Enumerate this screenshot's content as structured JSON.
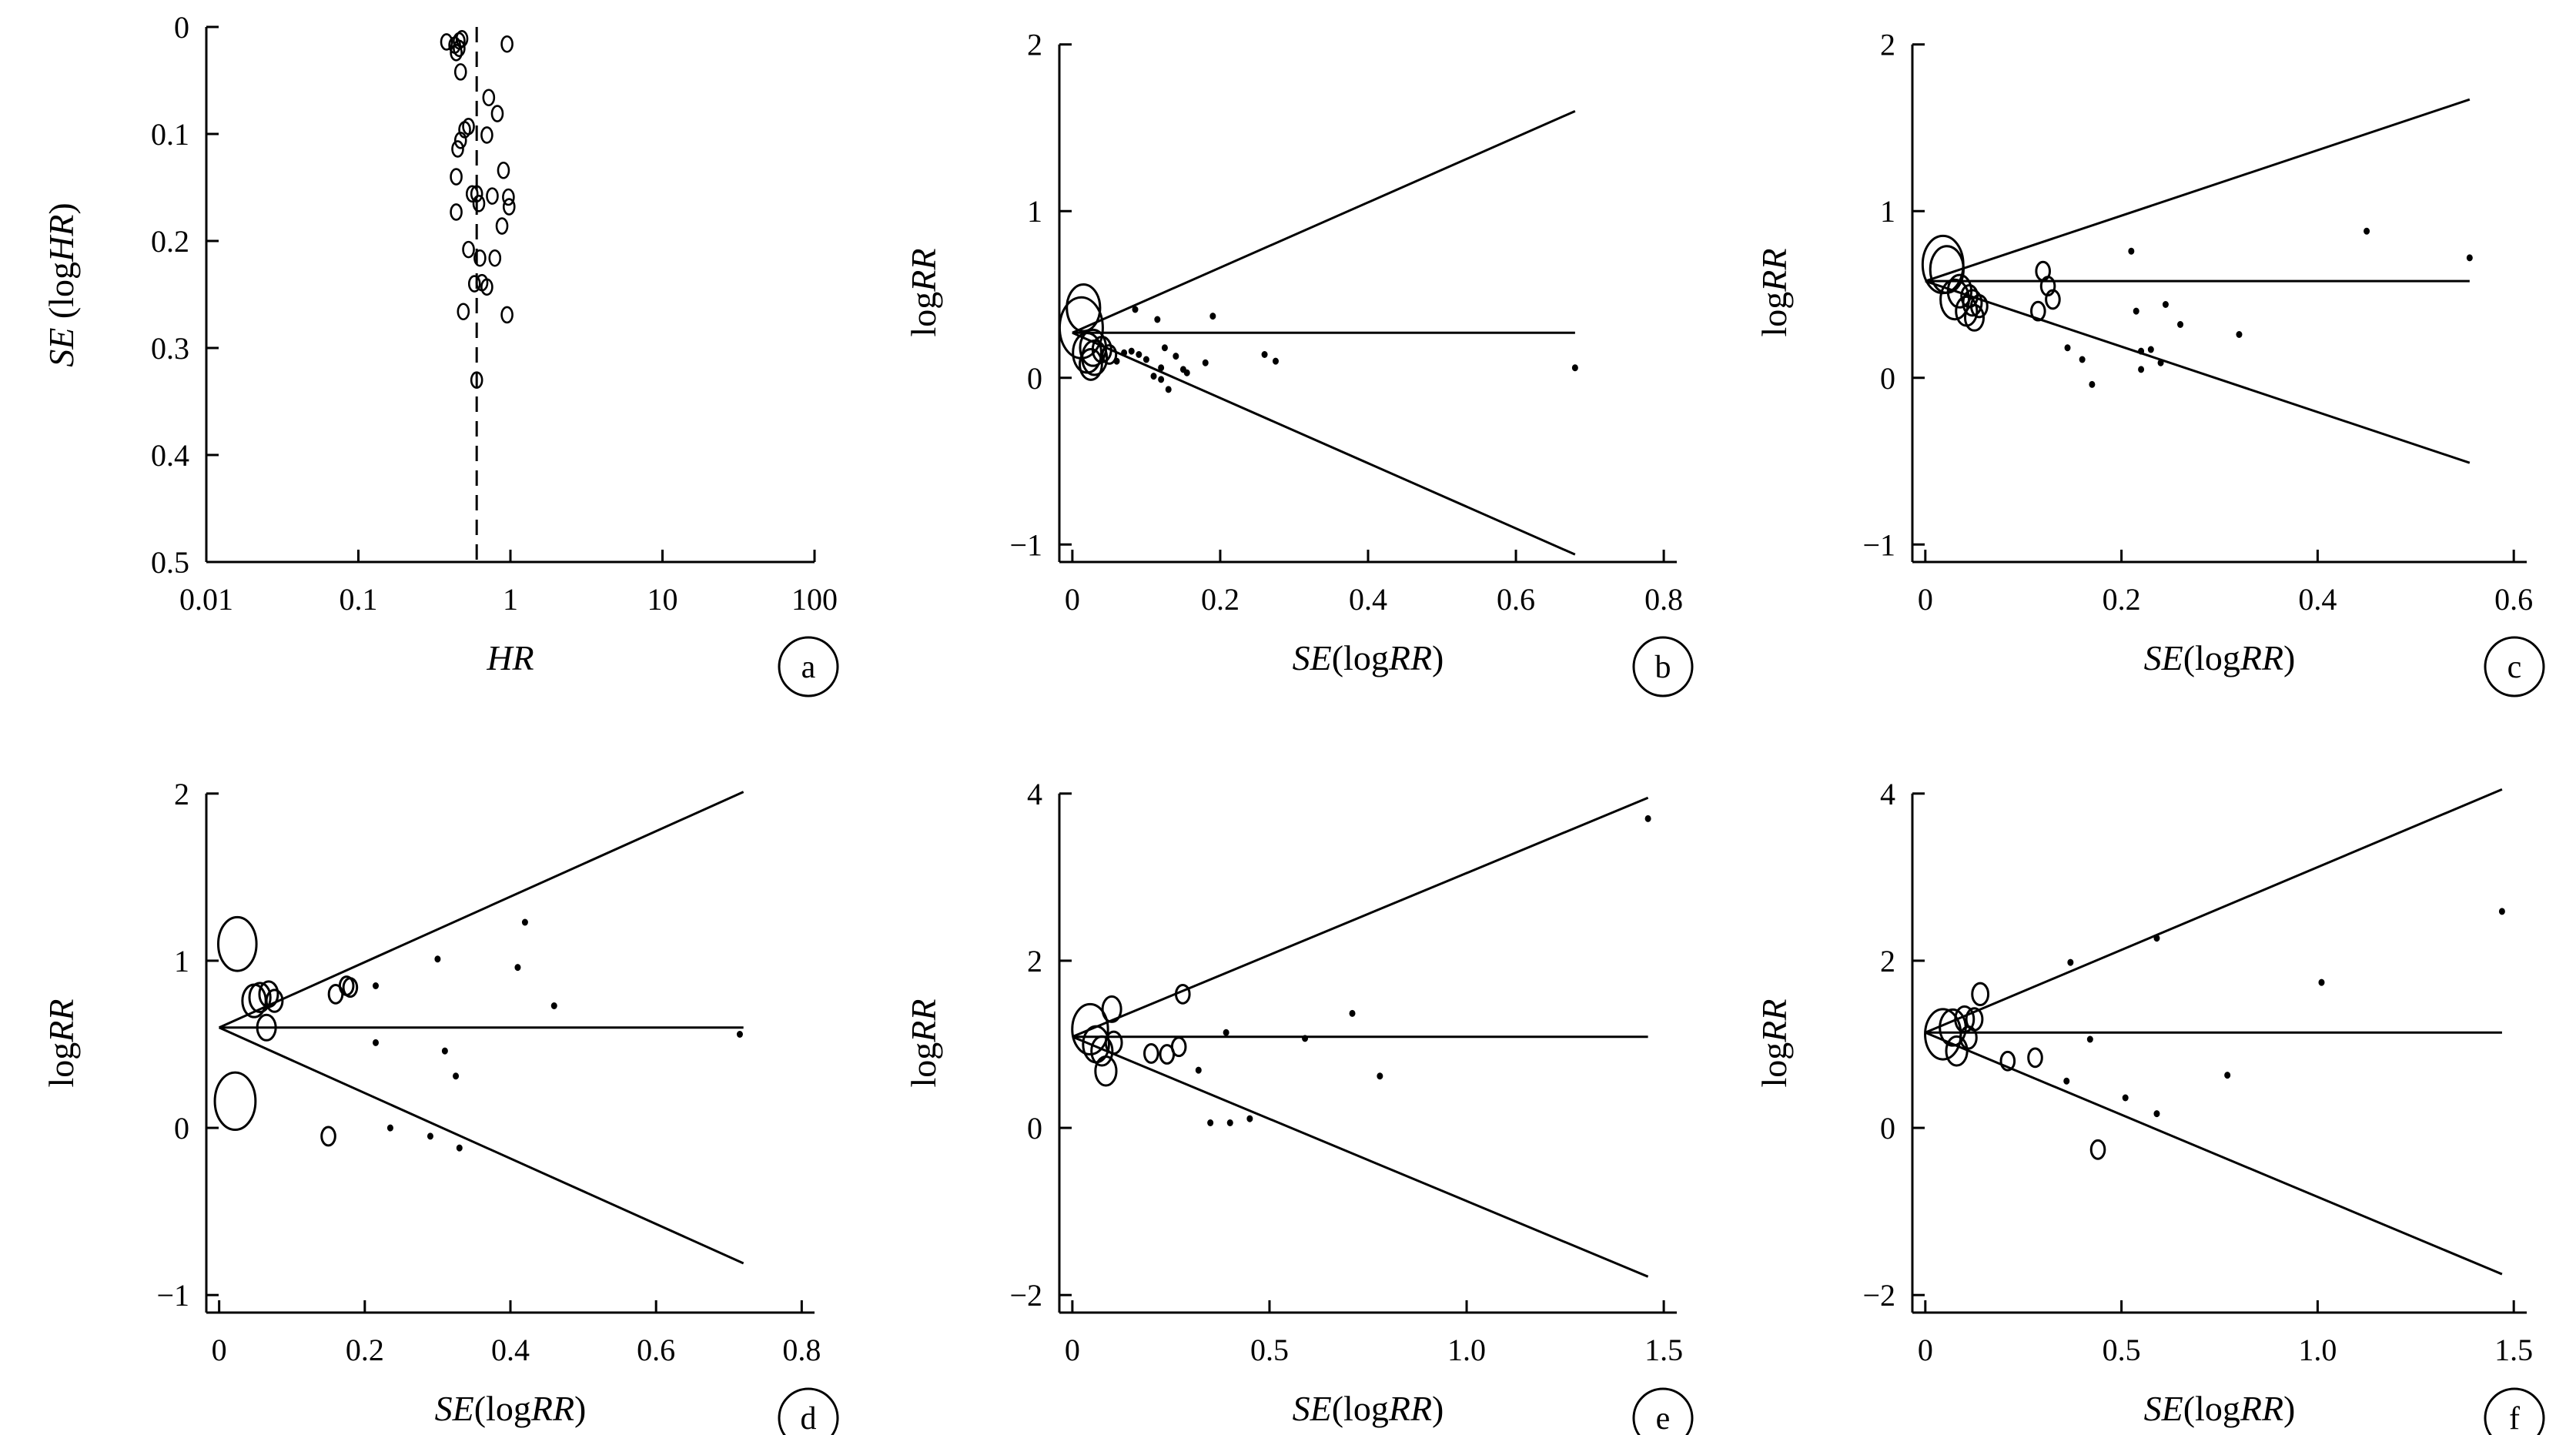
{
  "chart_data": [
    {
      "panel": "a",
      "type": "scatter",
      "xscale": "log",
      "xlabel_parts": [
        {
          "t": "HR",
          "i": true
        }
      ],
      "ylabel_parts": [
        {
          "t": "SE",
          "i": true
        },
        {
          "t": " (log",
          "i": false
        },
        {
          "t": "HR",
          "i": true
        },
        {
          "t": ")",
          "i": false
        }
      ],
      "xlim": [
        0.01,
        100
      ],
      "ylim": [
        0,
        0.5
      ],
      "yinvert": true,
      "xticks": [
        0.01,
        0.1,
        1,
        10,
        100
      ],
      "xticklabels": [
        "0.01",
        "0.1",
        "1",
        "10",
        "100"
      ],
      "yticks": [
        0,
        0.1,
        0.2,
        0.3,
        0.4,
        0.5
      ],
      "yticklabels": [
        "0",
        "0.1",
        "0.2",
        "0.3",
        "0.4",
        "0.5"
      ],
      "ref_value": 0.6,
      "points": [
        [
          0.38,
          0.014
        ],
        [
          0.43,
          0.017
        ],
        [
          0.46,
          0.013
        ],
        [
          0.48,
          0.011
        ],
        [
          0.44,
          0.024
        ],
        [
          0.46,
          0.02
        ],
        [
          0.95,
          0.016
        ],
        [
          0.47,
          0.042
        ],
        [
          0.72,
          0.066
        ],
        [
          0.82,
          0.081
        ],
        [
          0.53,
          0.093
        ],
        [
          0.5,
          0.096
        ],
        [
          0.47,
          0.106
        ],
        [
          0.7,
          0.101
        ],
        [
          0.45,
          0.114
        ],
        [
          0.9,
          0.134
        ],
        [
          0.44,
          0.14
        ],
        [
          0.56,
          0.156
        ],
        [
          0.6,
          0.156
        ],
        [
          0.76,
          0.158
        ],
        [
          0.97,
          0.159
        ],
        [
          0.98,
          0.168
        ],
        [
          0.44,
          0.173
        ],
        [
          0.62,
          0.165
        ],
        [
          0.88,
          0.186
        ],
        [
          0.53,
          0.208
        ],
        [
          0.63,
          0.216
        ],
        [
          0.79,
          0.216
        ],
        [
          0.58,
          0.24
        ],
        [
          0.65,
          0.239
        ],
        [
          0.7,
          0.243
        ],
        [
          0.49,
          0.266
        ],
        [
          0.95,
          0.269
        ],
        [
          0.6,
          0.33
        ]
      ]
    },
    {
      "panel": "b",
      "type": "scatter",
      "xlabel_parts": [
        {
          "t": "SE",
          "i": true
        },
        {
          "t": "(log",
          "i": false
        },
        {
          "t": "RR",
          "i": true
        },
        {
          "t": ")",
          "i": false
        }
      ],
      "ylabel_parts": [
        {
          "t": "log",
          "i": false
        },
        {
          "t": "RR",
          "i": true
        }
      ],
      "xlim": [
        0,
        0.8
      ],
      "ylim": [
        -1,
        2
      ],
      "xticks": [
        0,
        0.2,
        0.4,
        0.6,
        0.8
      ],
      "xticklabels": [
        "0",
        "0.2",
        "0.4",
        "0.6",
        "0.8"
      ],
      "yticks": [
        -1,
        0,
        1,
        2
      ],
      "yticklabels": [
        "−1",
        "0",
        "1",
        "2"
      ],
      "ref_value": 0.27,
      "funnel_end": 0.68,
      "funnel_upper": 1.6,
      "funnel_lower": -1.06,
      "points": [
        [
          0.012,
          0.3,
          3
        ],
        [
          0.015,
          0.42,
          2.2
        ],
        [
          0.02,
          0.15,
          1.8
        ],
        [
          0.028,
          0.18,
          1.6
        ],
        [
          0.03,
          0.12,
          1.5
        ],
        [
          0.025,
          0.08,
          1.3
        ],
        [
          0.04,
          0.17,
          1
        ],
        [
          0.05,
          0.14,
          0.6
        ],
        [
          0.06,
          0.1,
          0.5
        ],
        [
          0.07,
          0.15,
          0.5
        ],
        [
          0.08,
          0.16,
          0.5
        ],
        [
          0.09,
          0.14,
          0.5
        ],
        [
          0.1,
          0.11,
          0.5
        ],
        [
          0.085,
          0.41,
          0.5
        ],
        [
          0.11,
          0.01,
          0.5
        ],
        [
          0.12,
          0.06,
          0.5
        ],
        [
          0.12,
          -0.01,
          0.5
        ],
        [
          0.13,
          -0.07,
          0.5
        ],
        [
          0.125,
          0.18,
          0.5
        ],
        [
          0.14,
          0.13,
          0.5
        ],
        [
          0.15,
          0.05,
          0.5
        ],
        [
          0.155,
          0.03,
          0.5
        ],
        [
          0.115,
          0.35,
          0.5
        ],
        [
          0.19,
          0.37,
          0.5
        ],
        [
          0.18,
          0.09,
          0.5
        ],
        [
          0.26,
          0.14,
          0.5
        ],
        [
          0.275,
          0.1,
          0.5
        ],
        [
          0.68,
          0.06,
          0.5
        ]
      ]
    },
    {
      "panel": "c",
      "type": "scatter",
      "xlabel_parts": [
        {
          "t": "SE",
          "i": true
        },
        {
          "t": "(log",
          "i": false
        },
        {
          "t": "RR",
          "i": true
        },
        {
          "t": ")",
          "i": false
        }
      ],
      "ylabel_parts": [
        {
          "t": "log",
          "i": false
        },
        {
          "t": "RR",
          "i": true
        }
      ],
      "xlim": [
        0,
        0.6
      ],
      "ylim": [
        -1,
        2
      ],
      "xticks": [
        0,
        0.2,
        0.4,
        0.6
      ],
      "xticklabels": [
        "0",
        "0.2",
        "0.4",
        "0.6"
      ],
      "yticks": [
        -1,
        0,
        1,
        2
      ],
      "yticklabels": [
        "−1",
        "0",
        "1",
        "2"
      ],
      "ref_value": 0.58,
      "funnel_end": 0.555,
      "funnel_upper": 1.67,
      "funnel_lower": -0.51,
      "points": [
        [
          0.018,
          0.68,
          2.8
        ],
        [
          0.022,
          0.65,
          2.2
        ],
        [
          0.03,
          0.47,
          1.8
        ],
        [
          0.035,
          0.52,
          1.4
        ],
        [
          0.042,
          0.4,
          1.2
        ],
        [
          0.048,
          0.45,
          1
        ],
        [
          0.05,
          0.36,
          1
        ],
        [
          0.055,
          0.43,
          0.8
        ],
        [
          0.045,
          0.49,
          0.8
        ],
        [
          0.115,
          0.4,
          0.6
        ],
        [
          0.12,
          0.64,
          0.6
        ],
        [
          0.125,
          0.55,
          0.6
        ],
        [
          0.13,
          0.47,
          0.6
        ],
        [
          0.145,
          0.18,
          0.5
        ],
        [
          0.16,
          0.11,
          0.5
        ],
        [
          0.17,
          -0.04,
          0.5
        ],
        [
          0.21,
          0.76,
          0.5
        ],
        [
          0.215,
          0.4,
          0.5
        ],
        [
          0.22,
          0.16,
          0.5
        ],
        [
          0.22,
          0.05,
          0.5
        ],
        [
          0.23,
          0.17,
          0.5
        ],
        [
          0.245,
          0.44,
          0.5
        ],
        [
          0.24,
          0.09,
          0.5
        ],
        [
          0.26,
          0.32,
          0.5
        ],
        [
          0.32,
          0.26,
          0.5
        ],
        [
          0.45,
          0.88,
          0.5
        ],
        [
          0.555,
          0.72,
          0.5
        ]
      ]
    },
    {
      "panel": "d",
      "type": "scatter",
      "xlabel_parts": [
        {
          "t": "SE",
          "i": true
        },
        {
          "t": "(log",
          "i": false
        },
        {
          "t": "RR",
          "i": true
        },
        {
          "t": ")",
          "i": false
        }
      ],
      "ylabel_parts": [
        {
          "t": "log",
          "i": false
        },
        {
          "t": "RR",
          "i": true
        }
      ],
      "xlim": [
        0,
        0.8
      ],
      "ylim": [
        -1,
        2
      ],
      "xticks": [
        0,
        0.2,
        0.4,
        0.6,
        0.8
      ],
      "xticklabels": [
        "0",
        "0.2",
        "0.4",
        "0.6",
        "0.8"
      ],
      "yticks": [
        -1,
        0,
        1,
        2
      ],
      "yticklabels": [
        "−1",
        "0",
        "1",
        "2"
      ],
      "ref_value": 0.6,
      "funnel_end": 0.72,
      "funnel_upper": 2.01,
      "funnel_lower": -0.81,
      "points": [
        [
          0.025,
          1.1,
          2.6
        ],
        [
          0.022,
          0.16,
          2.8
        ],
        [
          0.048,
          0.76,
          1.4
        ],
        [
          0.056,
          0.78,
          1.2
        ],
        [
          0.068,
          0.8,
          1
        ],
        [
          0.076,
          0.76,
          0.8
        ],
        [
          0.065,
          0.6,
          1
        ],
        [
          0.16,
          0.8,
          0.6
        ],
        [
          0.175,
          0.85,
          0.6
        ],
        [
          0.18,
          0.84,
          0.6
        ],
        [
          0.215,
          0.85,
          0.5
        ],
        [
          0.215,
          0.51,
          0.5
        ],
        [
          0.15,
          -0.05,
          0.6
        ],
        [
          0.235,
          0.0,
          0.5
        ],
        [
          0.29,
          -0.05,
          0.5
        ],
        [
          0.3,
          1.01,
          0.5
        ],
        [
          0.31,
          0.46,
          0.5
        ],
        [
          0.325,
          0.31,
          0.5
        ],
        [
          0.33,
          -0.12,
          0.5
        ],
        [
          0.41,
          0.96,
          0.5
        ],
        [
          0.42,
          1.23,
          0.5
        ],
        [
          0.46,
          0.73,
          0.5
        ],
        [
          0.715,
          0.56,
          0.5
        ]
      ]
    },
    {
      "panel": "e",
      "type": "scatter",
      "xlabel_parts": [
        {
          "t": "SE",
          "i": true
        },
        {
          "t": "(log",
          "i": false
        },
        {
          "t": "RR",
          "i": true
        },
        {
          "t": ")",
          "i": false
        }
      ],
      "ylabel_parts": [
        {
          "t": "log",
          "i": false
        },
        {
          "t": "RR",
          "i": true
        }
      ],
      "xlim": [
        0,
        1.5
      ],
      "ylim": [
        -2,
        4
      ],
      "xticks": [
        0,
        0.5,
        1.0,
        1.5
      ],
      "xticklabels": [
        "0",
        "0.5",
        "1.0",
        "1.5"
      ],
      "yticks": [
        -2,
        0,
        2,
        4
      ],
      "yticklabels": [
        "−2",
        "0",
        "2",
        "4"
      ],
      "ref_value": 1.09,
      "funnel_end": 1.46,
      "funnel_upper": 3.95,
      "funnel_lower": -1.78,
      "points": [
        [
          0.045,
          1.18,
          2.4
        ],
        [
          0.06,
          1.0,
          1.6
        ],
        [
          0.075,
          0.92,
          1.2
        ],
        [
          0.085,
          0.68,
          1.2
        ],
        [
          0.1,
          1.42,
          1
        ],
        [
          0.105,
          1.02,
          0.8
        ],
        [
          0.2,
          0.89,
          0.6
        ],
        [
          0.24,
          0.88,
          0.6
        ],
        [
          0.27,
          0.97,
          0.6
        ],
        [
          0.28,
          1.6,
          0.6
        ],
        [
          0.32,
          0.69,
          0.5
        ],
        [
          0.35,
          0.06,
          0.5
        ],
        [
          0.39,
          1.14,
          0.5
        ],
        [
          0.4,
          0.06,
          0.5
        ],
        [
          0.45,
          0.11,
          0.5
        ],
        [
          0.59,
          1.07,
          0.5
        ],
        [
          0.71,
          1.37,
          0.5
        ],
        [
          0.78,
          0.62,
          0.5
        ],
        [
          1.46,
          3.7,
          0.5
        ]
      ]
    },
    {
      "panel": "f",
      "type": "scatter",
      "xlabel_parts": [
        {
          "t": "SE",
          "i": true
        },
        {
          "t": "(log",
          "i": false
        },
        {
          "t": "RR",
          "i": true
        },
        {
          "t": ")",
          "i": false
        }
      ],
      "ylabel_parts": [
        {
          "t": "log",
          "i": false
        },
        {
          "t": "RR",
          "i": true
        }
      ],
      "xlim": [
        0,
        1.5
      ],
      "ylim": [
        -2,
        4
      ],
      "xticks": [
        0,
        0.5,
        1.0,
        1.5
      ],
      "xticklabels": [
        "0",
        "0.5",
        "1.0",
        "1.5"
      ],
      "yticks": [
        -2,
        0,
        2,
        4
      ],
      "yticklabels": [
        "−2",
        "0",
        "2",
        "4"
      ],
      "ref_value": 1.14,
      "funnel_end": 1.47,
      "funnel_upper": 4.05,
      "funnel_lower": -1.75,
      "points": [
        [
          0.045,
          1.12,
          2.4
        ],
        [
          0.07,
          1.2,
          1.6
        ],
        [
          0.08,
          0.92,
          1.2
        ],
        [
          0.1,
          1.3,
          1
        ],
        [
          0.11,
          1.08,
          0.8
        ],
        [
          0.125,
          1.3,
          0.8
        ],
        [
          0.14,
          1.6,
          0.8
        ],
        [
          0.21,
          0.8,
          0.6
        ],
        [
          0.28,
          0.84,
          0.6
        ],
        [
          0.36,
          0.56,
          0.5
        ],
        [
          0.37,
          1.98,
          0.5
        ],
        [
          0.42,
          1.06,
          0.5
        ],
        [
          0.44,
          -0.26,
          0.6
        ],
        [
          0.51,
          0.36,
          0.5
        ],
        [
          0.59,
          2.27,
          0.5
        ],
        [
          0.59,
          0.17,
          0.5
        ],
        [
          0.77,
          0.63,
          0.5
        ],
        [
          1.01,
          1.74,
          0.5
        ],
        [
          1.47,
          2.59,
          0.5
        ]
      ]
    }
  ]
}
